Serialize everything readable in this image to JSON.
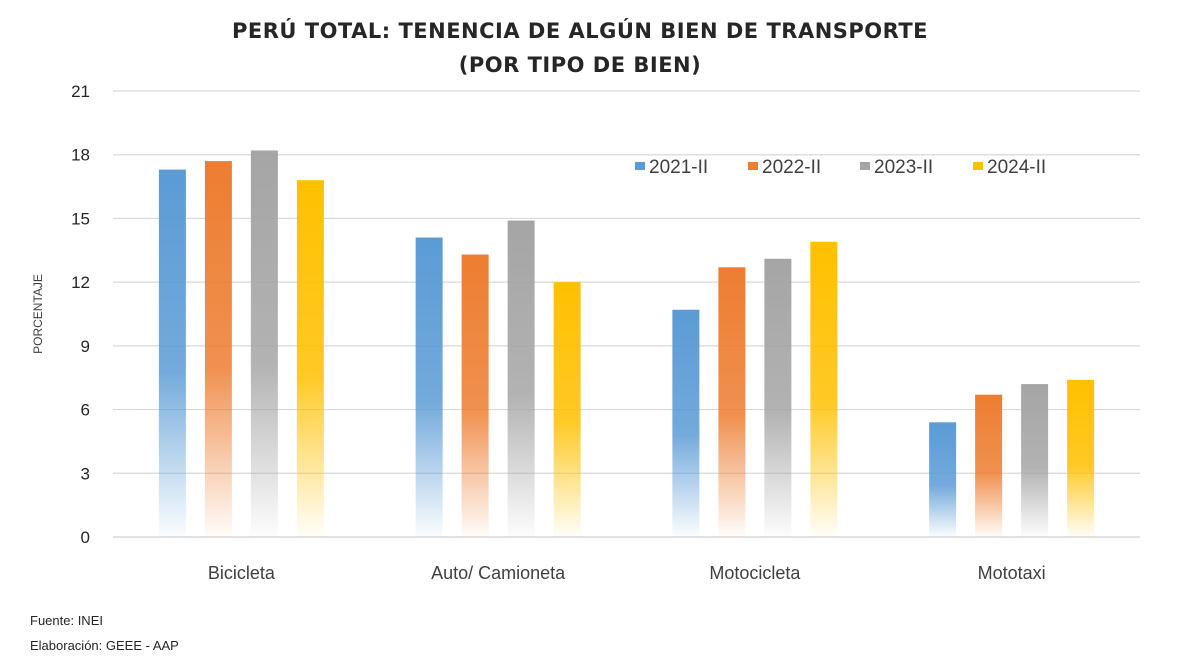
{
  "chart_data": {
    "type": "bar",
    "title": "PERÚ TOTAL: TENENCIA DE ALGÚN BIEN DE TRANSPORTE",
    "subtitle": "(POR TIPO DE BIEN)",
    "xlabel": "",
    "ylabel": "PORCENTAJE",
    "ylim": [
      0,
      21
    ],
    "yticks": [
      0,
      3,
      6,
      9,
      12,
      15,
      18,
      21
    ],
    "grid": true,
    "legend_position": "top-right",
    "categories": [
      "Bicicleta",
      "Auto/ Camioneta",
      "Motocicleta",
      "Mototaxi"
    ],
    "series": [
      {
        "name": "2021-II",
        "color": "#5B9BD5",
        "values": [
          17.3,
          14.1,
          10.7,
          5.4
        ]
      },
      {
        "name": "2022-II",
        "color": "#ED7D31",
        "values": [
          17.7,
          13.3,
          12.7,
          6.7
        ]
      },
      {
        "name": "2023-II",
        "color": "#A5A5A5",
        "values": [
          18.2,
          14.9,
          13.1,
          7.2
        ]
      },
      {
        "name": "2024-II",
        "color": "#FFC000",
        "values": [
          16.8,
          12.0,
          13.9,
          7.4
        ]
      }
    ]
  },
  "footer": {
    "source": "Fuente: INEI",
    "author": "Elaboración: GEEE - AAP"
  }
}
